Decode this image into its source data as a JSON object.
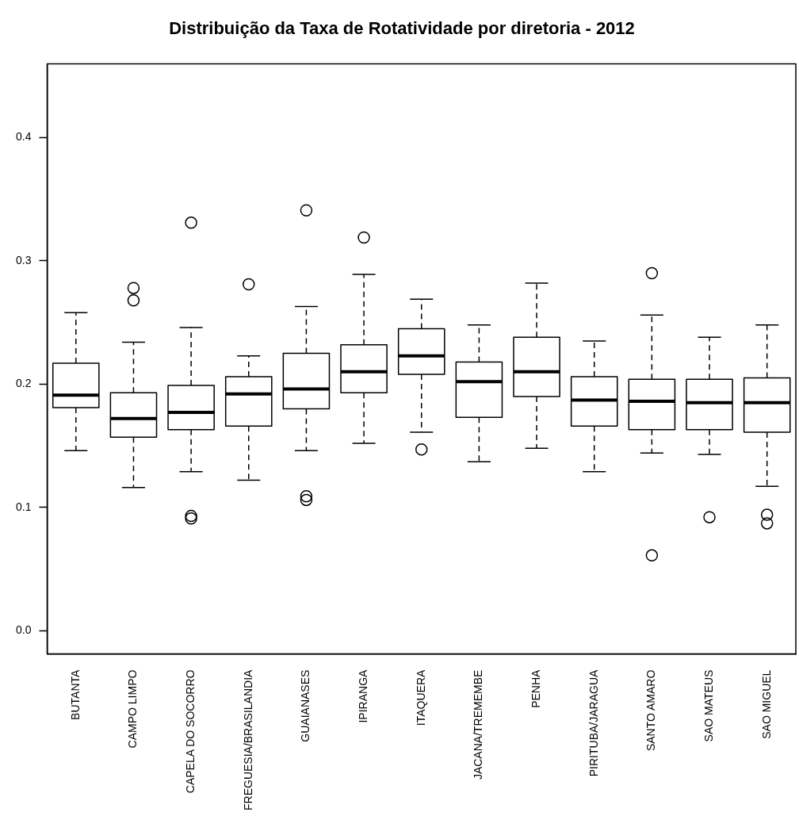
{
  "chart_data": {
    "type": "box",
    "title": "Distribuição da Taxa de Rotatividade por diretoria - 2012",
    "categories": [
      "BUTANTA",
      "CAMPO LIMPO",
      "CAPELA DO SOCORRO",
      "FREGUESIA/BRASILANDIA",
      "GUAIANASES",
      "IPIRANGA",
      "ITAQUERA",
      "JACANA/TREMEMBE",
      "PENHA",
      "PIRITUBA/JARAGUA",
      "SANTO AMARO",
      "SAO MATEUS",
      "SAO MIGUEL"
    ],
    "boxes": [
      {
        "low": 0.146,
        "q1": 0.181,
        "median": 0.191,
        "q3": 0.217,
        "high": 0.258
      },
      {
        "low": 0.116,
        "q1": 0.157,
        "median": 0.172,
        "q3": 0.193,
        "high": 0.234,
        "outliers": [
          0.278,
          0.268
        ]
      },
      {
        "low": 0.129,
        "q1": 0.163,
        "median": 0.177,
        "q3": 0.199,
        "high": 0.246,
        "outliers": [
          0.331,
          0.093,
          0.091
        ]
      },
      {
        "low": 0.122,
        "q1": 0.166,
        "median": 0.192,
        "q3": 0.206,
        "high": 0.223,
        "outliers": [
          0.281
        ]
      },
      {
        "low": 0.146,
        "q1": 0.18,
        "median": 0.196,
        "q3": 0.225,
        "high": 0.263,
        "outliers": [
          0.341,
          0.109,
          0.106
        ]
      },
      {
        "low": 0.152,
        "q1": 0.193,
        "median": 0.21,
        "q3": 0.232,
        "high": 0.289,
        "outliers": [
          0.319
        ]
      },
      {
        "low": 0.161,
        "q1": 0.208,
        "median": 0.223,
        "q3": 0.245,
        "high": 0.269,
        "outliers": [
          0.147
        ]
      },
      {
        "low": 0.137,
        "q1": 0.173,
        "median": 0.202,
        "q3": 0.218,
        "high": 0.248
      },
      {
        "low": 0.148,
        "q1": 0.19,
        "median": 0.21,
        "q3": 0.238,
        "high": 0.282
      },
      {
        "low": 0.129,
        "q1": 0.166,
        "median": 0.187,
        "q3": 0.206,
        "high": 0.235
      },
      {
        "low": 0.144,
        "q1": 0.163,
        "median": 0.186,
        "q3": 0.204,
        "high": 0.256,
        "outliers": [
          0.29,
          0.061
        ]
      },
      {
        "low": 0.143,
        "q1": 0.163,
        "median": 0.185,
        "q3": 0.204,
        "high": 0.238,
        "outliers": [
          0.092
        ]
      },
      {
        "low": 0.117,
        "q1": 0.161,
        "median": 0.185,
        "q3": 0.205,
        "high": 0.248,
        "outliers": [
          0.094,
          0.087
        ]
      }
    ],
    "color": "#000000",
    "ylim": [
      -0.019,
      0.46
    ],
    "yticks": [
      {
        "value": 0,
        "label": "0.0"
      },
      0.1,
      0.2,
      0.3,
      0.4
    ],
    "grid": false,
    "legend": false,
    "line_style": "dashed",
    "marker": "circle"
  }
}
